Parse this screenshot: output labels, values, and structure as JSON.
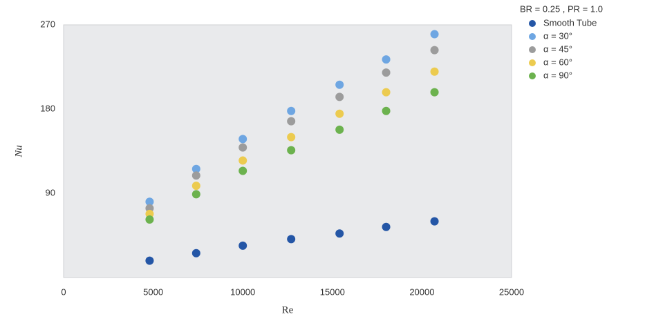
{
  "chart_data": {
    "type": "scatter",
    "x_label": "Re",
    "y_label": "Nu",
    "legend_title": "BR = 0.25 , PR = 1.0",
    "x": [
      4800,
      7400,
      10000,
      12700,
      15400,
      18000,
      20700
    ],
    "series": [
      {
        "name": "Smooth Tube",
        "color": "#2456a6",
        "values": [
          18,
          26,
          34,
          41,
          47,
          54,
          60
        ]
      },
      {
        "name": "α = 30°",
        "color": "#6ea6e2",
        "values": [
          81,
          116,
          148,
          178,
          206,
          233,
          260
        ]
      },
      {
        "name": "α = 45°",
        "color": "#9c9c9c",
        "values": [
          74,
          109,
          139,
          167,
          193,
          219,
          243
        ]
      },
      {
        "name": "α = 60°",
        "color": "#eccb4f",
        "values": [
          68,
          98,
          125,
          150,
          175,
          198,
          220
        ]
      },
      {
        "name": "α = 90°",
        "color": "#6cb24e",
        "values": [
          62,
          89,
          114,
          136,
          158,
          178,
          198
        ]
      }
    ],
    "xlim": [
      0,
      25000
    ],
    "xticks": [
      0,
      5000,
      10000,
      15000,
      20000,
      25000
    ],
    "ylim": [
      0,
      270
    ],
    "yticks": [
      90,
      180,
      270
    ],
    "legend": "upper right"
  }
}
